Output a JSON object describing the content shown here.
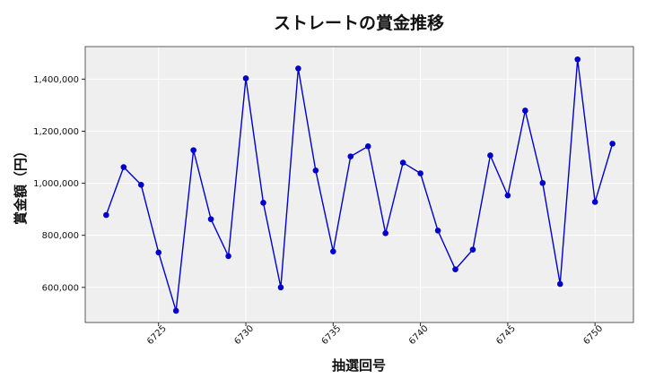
{
  "chart_data": {
    "type": "line",
    "title": "ストレートの賞金推移",
    "xlabel": "抽選回号",
    "ylabel": "賞金額（円）",
    "x": [
      6722,
      6723,
      6724,
      6725,
      6726,
      6727,
      6728,
      6729,
      6730,
      6731,
      6732,
      6733,
      6734,
      6735,
      6736,
      6737,
      6738,
      6739,
      6740,
      6741,
      6742,
      6743,
      6744,
      6745,
      6746,
      6747,
      6748,
      6749,
      6750,
      6751
    ],
    "series": [
      {
        "values": [
          878000,
          1062000,
          994000,
          734000,
          510000,
          1127000,
          862000,
          720000,
          1403000,
          925000,
          600000,
          1441000,
          1049000,
          738000,
          1103000,
          1142000,
          808000,
          1079000,
          1038000,
          818000,
          669000,
          745000,
          1107000,
          953000,
          1279000,
          1001000,
          613000,
          1476000,
          928000,
          1152000
        ],
        "color": "#0000cc"
      }
    ],
    "xlim": [
      6720.8,
      6752.2
    ],
    "ylim": [
      465000,
      1525000
    ],
    "xticks": [
      6725,
      6730,
      6735,
      6740,
      6745,
      6750
    ],
    "xtick_labels": [
      "6725",
      "6730",
      "6735",
      "6740",
      "6745",
      "6750"
    ],
    "yticks": [
      600000,
      800000,
      1000000,
      1200000,
      1400000
    ],
    "ytick_labels": [
      "600,000",
      "800,000",
      "1,000,000",
      "1,200,000",
      "1,400,000"
    ],
    "grid": true,
    "plot_background": "#efefef",
    "grid_color": "#ffffff"
  }
}
